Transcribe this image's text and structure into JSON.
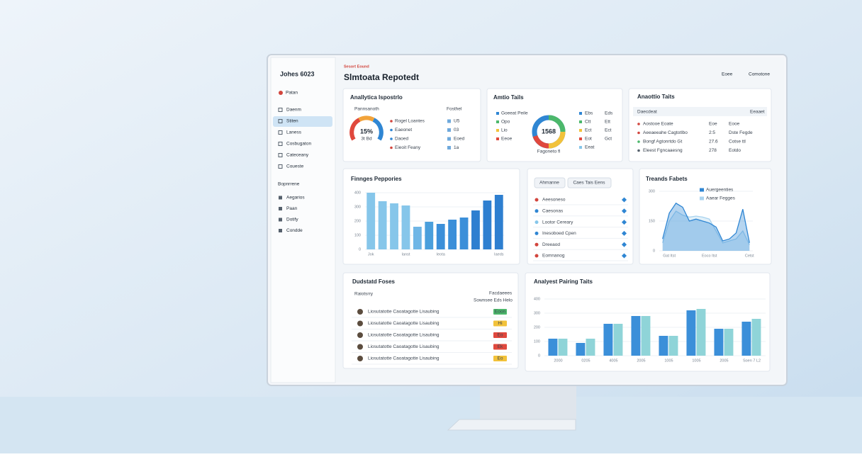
{
  "sidebar": {
    "brand": "Johes 6023",
    "user": "Patan",
    "items": [
      "Daenm",
      "Stiten",
      "Laness",
      "Cosbugaton",
      "Cateceany",
      "Coueste"
    ],
    "section": "Bopnrrene",
    "section_items": [
      "Aegarios",
      "Paan",
      "Dotify",
      "Condde"
    ]
  },
  "header": {
    "eyebrow": "Sesort Eound",
    "title": "Slmtoata Repotedt",
    "actions": [
      "Eoee",
      "Comotone"
    ]
  },
  "gauge_card": {
    "title": "Anallytica Ispostrlo",
    "left_label": "Pannsanoth",
    "right_label": "Fosthel",
    "center": "15%",
    "sub": "3t Bd",
    "rows": [
      [
        "Rogel Loantes",
        "U5"
      ],
      [
        "Eaeonet",
        "03"
      ],
      [
        "Daoed",
        "Eoed"
      ],
      [
        "Eieoit Feany",
        "1a"
      ]
    ]
  },
  "donut_card": {
    "title": "Amtio Tails",
    "center": "1568",
    "caption": "Fagoneto fl",
    "left": [
      "Goeeat Peile",
      "Opo",
      "Lio",
      "Eeoe"
    ],
    "mid": [
      "Ebs",
      "Ctt",
      "Ect",
      "Eot",
      "Eeat"
    ],
    "right": [
      "Eds",
      "Ett",
      "Ect",
      "Gct"
    ]
  },
  "table_card": {
    "title": "Anaottio Taits",
    "columns": [
      "Daecdeat",
      "Eeaaet"
    ],
    "rows": [
      [
        "Aostooe Eoate",
        "Eoe",
        "Eooe"
      ],
      [
        "Aeeaeeahe Cagtotlbo",
        "2:5",
        "Dste Fegde"
      ],
      [
        "Bongf Agtonrtdo Gt",
        "27.6",
        "Cotse ttl"
      ],
      [
        "Eleest Fgncaaesng",
        "278",
        "Eotdo"
      ]
    ]
  },
  "list_card": {
    "buttons": [
      "Ahmanne",
      "Caes Tais Eens"
    ],
    "rows": [
      "Aeesoneso",
      "Caesonas",
      "Lootor Cereary",
      "Inesoboed Cpen",
      "Dreeaod",
      "Eomnanog"
    ]
  },
  "products_card": {
    "title": "Dudstatd Foses",
    "left_label": "Raiotsrry",
    "right_label": "Facdaeees",
    "right_sub": "Sownsee Eds Helo",
    "rows": [
      [
        "Liosutatotte Caoatagotte Lisaubing",
        "Eoon"
      ],
      [
        "Liosutatotte Caoatagotte Lisaubing",
        "Hi"
      ],
      [
        "Liosutatotte Caoatagotte Lisaubing",
        "Eo"
      ],
      [
        "Liosutatotte Caoatagotte Lisaubing",
        "Ek"
      ],
      [
        "Liosutatotte Caoatagotte Lisaubing",
        "Eo"
      ]
    ]
  },
  "chart_data": [
    {
      "type": "bar",
      "title": "Finnges Peppories",
      "categories": [
        "Jok",
        null,
        null,
        "Ianst",
        null,
        null,
        "Ieota",
        null,
        null,
        null,
        null,
        "Iaeds"
      ],
      "values": [
        400,
        340,
        325,
        310,
        160,
        195,
        180,
        210,
        225,
        275,
        345,
        385
      ],
      "colors": [
        "#86c6ea",
        "#86c6ea",
        "#86c6ea",
        "#86c6ea",
        "#6fb6e6",
        "#4a9fdc",
        "#3b8fd9",
        "#3b8fd9",
        "#3b8fd9",
        "#2e7fd0",
        "#2e7fd0",
        "#2e7fd0"
      ],
      "ylim": [
        0,
        400
      ],
      "yticks": [
        0,
        100,
        200,
        300,
        400
      ],
      "grid": true
    },
    {
      "type": "area",
      "title": "Treands Fabets",
      "categories": [
        null,
        "Gat Itst",
        null,
        null,
        null,
        null,
        null,
        "Eoco Itst",
        null,
        null,
        null,
        null,
        null,
        "Cetst"
      ],
      "series": [
        {
          "name": "Auergeenties",
          "color": "#2f86d3",
          "values": [
            60,
            190,
            240,
            220,
            150,
            160,
            150,
            140,
            120,
            50,
            60,
            90,
            210,
            40
          ]
        },
        {
          "name": "Aaear Fegges",
          "color": "#a9d3ef",
          "values": [
            40,
            150,
            200,
            180,
            170,
            175,
            170,
            160,
            100,
            40,
            50,
            60,
            100,
            30
          ]
        }
      ],
      "ylim": [
        0,
        300
      ],
      "yticks": [
        0,
        150,
        300
      ],
      "grid": true
    },
    {
      "type": "grouped_bar",
      "title": "Analyest Pairing Taits",
      "categories": [
        "2000",
        "0205",
        "4005",
        "2005",
        "1005",
        "1005",
        "2005",
        "Soen 7 L2"
      ],
      "series": [
        {
          "color": "#3b8fd9",
          "values": [
            120,
            90,
            225,
            280,
            140,
            320,
            190,
            240
          ]
        },
        {
          "color": "#8fd4d8",
          "values": [
            120,
            120,
            225,
            280,
            140,
            330,
            190,
            260
          ]
        }
      ],
      "ylim": [
        0,
        400
      ],
      "yticks": [
        0,
        100,
        200,
        300,
        400
      ],
      "grid": true
    }
  ]
}
